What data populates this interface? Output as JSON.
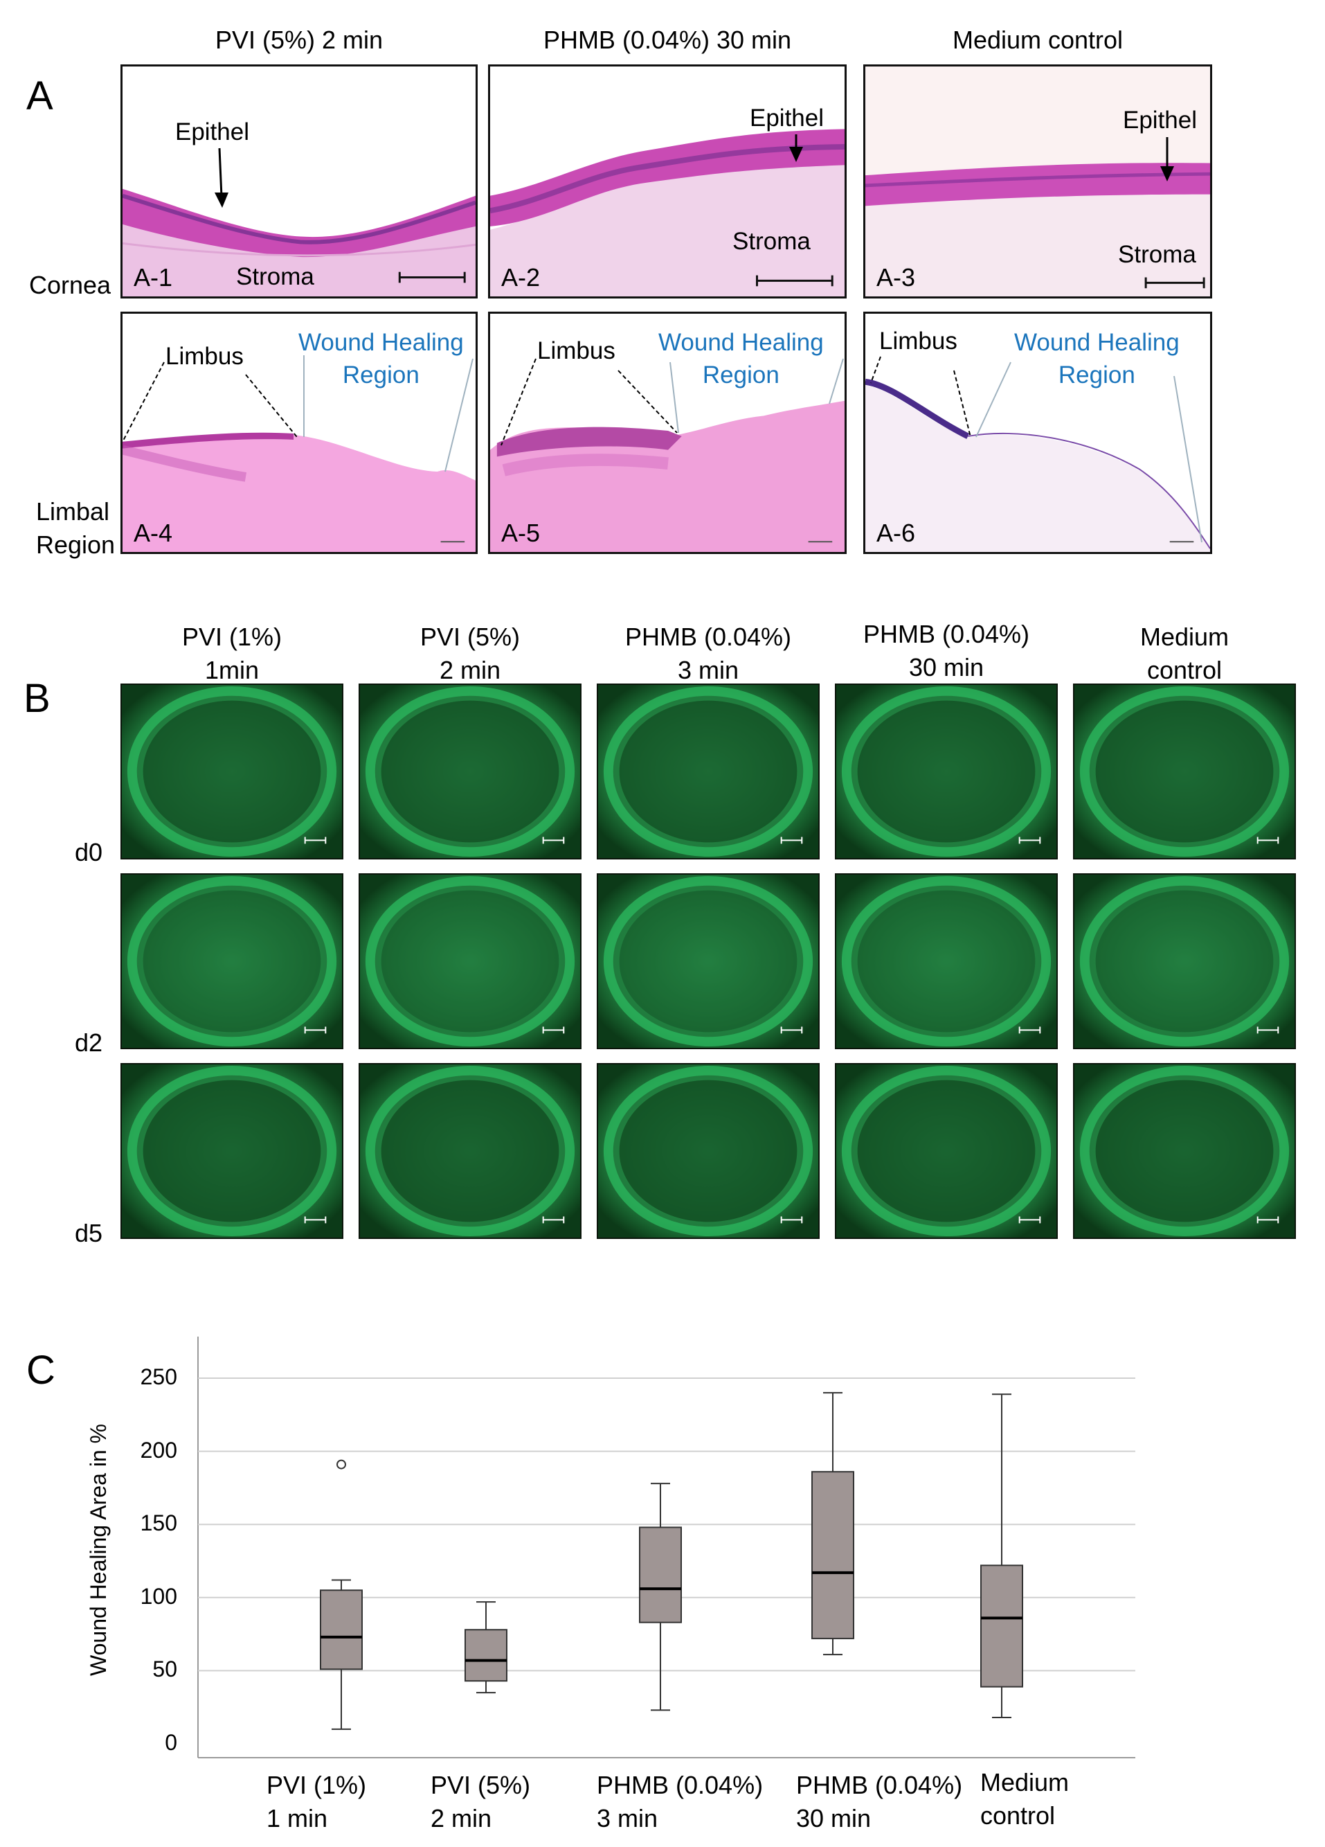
{
  "panel_a": {
    "label": "A",
    "columns": [
      "PVI (5%) 2 min",
      "PHMB (0.04%) 30 min",
      "Medium control"
    ],
    "row_labels": {
      "cornea": "Cornea",
      "limbal_1": "Limbal",
      "limbal_2": "Region"
    },
    "annotations": {
      "epithel": "Epithel",
      "stroma": "Stroma",
      "limbus": "Limbus",
      "wound_1": "Wound Healing",
      "wound_2": "Region"
    },
    "tags": [
      "A-1",
      "A-2",
      "A-3",
      "A-4",
      "A-5",
      "A-6"
    ]
  },
  "panel_b": {
    "label": "B",
    "columns": [
      {
        "line1": "PVI (1%)",
        "line2": "1min"
      },
      {
        "line1": "PVI (5%)",
        "line2": "2 min"
      },
      {
        "line1": "PHMB (0.04%)",
        "line2": "3 min"
      },
      {
        "line1": "PHMB (0.04%)",
        "line2": "30 min"
      },
      {
        "line1": "Medium",
        "line2": "control"
      }
    ],
    "rows": [
      "d0",
      "d2",
      "d5"
    ],
    "colors": {
      "fluorescence": "#2bb55c",
      "dark": "#0c3a18"
    }
  },
  "panel_c": {
    "label": "C"
  },
  "chart_data": {
    "type": "box",
    "title": "",
    "ylabel": "Wound Healing Area  in %",
    "xlabel": "",
    "ylim": [
      0,
      250
    ],
    "yticks": [
      0,
      50,
      100,
      150,
      200,
      250
    ],
    "grid": true,
    "box_color": "#9f9594",
    "categories": [
      {
        "line1": "PVI (1%)",
        "line2": "1 min"
      },
      {
        "line1": "PVI (5%)",
        "line2": "2 min"
      },
      {
        "line1": "PHMB (0.04%)",
        "line2": "3 min"
      },
      {
        "line1": "PHMB (0.04%)",
        "line2": "30 min"
      },
      {
        "line1": "Medium",
        "line2": "control"
      }
    ],
    "boxes": [
      {
        "whisker_low": 10,
        "q1": 51,
        "median": 73,
        "q3": 105,
        "whisker_high": 112,
        "outliers": [
          191
        ]
      },
      {
        "whisker_low": 35,
        "q1": 43,
        "median": 57,
        "q3": 78,
        "whisker_high": 97,
        "outliers": []
      },
      {
        "whisker_low": 23,
        "q1": 83,
        "median": 106,
        "q3": 148,
        "whisker_high": 178,
        "outliers": []
      },
      {
        "whisker_low": 61,
        "q1": 72,
        "median": 117,
        "q3": 186,
        "whisker_high": 240,
        "outliers": []
      },
      {
        "whisker_low": 18,
        "q1": 39,
        "median": 86,
        "q3": 122,
        "whisker_high": 239,
        "outliers": []
      }
    ]
  }
}
